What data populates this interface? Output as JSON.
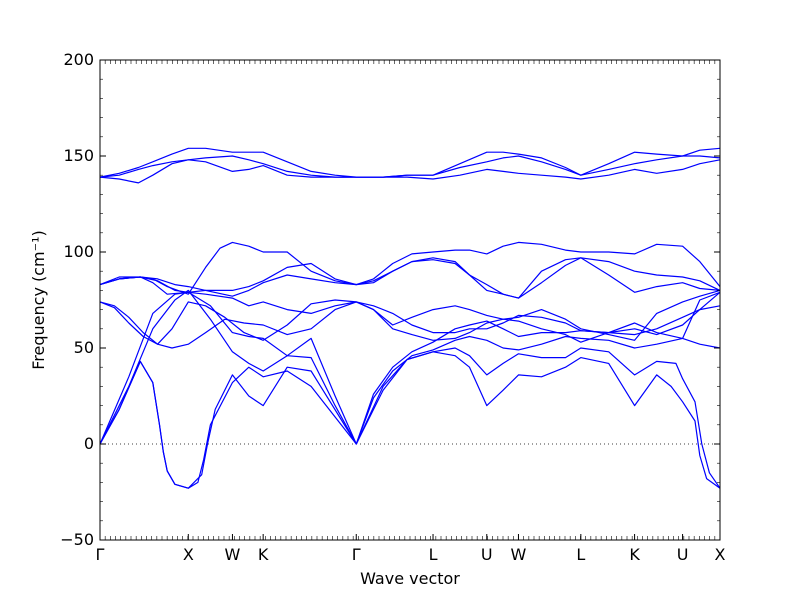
{
  "chart_data": {
    "type": "line",
    "xlabel": "Wave vector",
    "ylabel": "Frequency (cm⁻¹)",
    "ylim": [
      -50,
      200
    ],
    "yticks": [
      -50,
      0,
      50,
      100,
      150,
      200
    ],
    "xlim": [
      0,
      6.46
    ],
    "high_symmetry_points": [
      {
        "label": "Γ",
        "x": 0
      },
      {
        "label": "X",
        "x": 0.92
      },
      {
        "label": "W",
        "x": 1.38
      },
      {
        "label": "K",
        "x": 1.7
      },
      {
        "label": "Γ",
        "x": 2.67
      },
      {
        "label": "L",
        "x": 3.47
      },
      {
        "label": "U",
        "x": 4.03
      },
      {
        "label": "W",
        "x": 4.36
      },
      {
        "label": "L",
        "x": 5.01
      },
      {
        "label": "K",
        "x": 5.57
      },
      {
        "label": "U",
        "x": 6.07
      },
      {
        "label": "X",
        "x": 6.46
      }
    ],
    "zero_line": {
      "y": 0,
      "style": "dotted"
    },
    "line_color": "#0000ff",
    "series": [
      {
        "x": [
          0,
          0.2,
          0.42,
          0.55,
          0.62,
          0.66,
          0.7,
          0.78,
          0.92,
          1.06,
          1.12,
          1.2,
          1.38,
          1.55,
          1.7,
          1.95,
          2.2,
          2.67,
          2.95,
          3.2,
          3.47,
          3.7,
          3.85,
          4.03,
          4.2,
          4.36,
          4.6,
          4.85,
          5.01,
          5.3,
          5.57,
          5.8,
          5.95,
          6.07,
          6.2,
          6.25,
          6.32,
          6.46
        ],
        "y": [
          0,
          18,
          43,
          32,
          10,
          -4,
          -14,
          -21,
          -23,
          -16,
          0,
          18,
          36,
          25,
          20,
          40,
          38,
          0,
          30,
          44,
          48,
          46,
          40,
          20,
          28,
          36,
          35,
          40,
          45,
          42,
          20,
          36,
          30,
          22,
          12,
          -6,
          -18,
          -23
        ]
      },
      {
        "x": [
          0,
          0.2,
          0.42,
          0.55,
          0.62,
          0.66,
          0.7,
          0.78,
          0.92,
          1.02,
          1.08,
          1.15,
          1.38,
          1.55,
          1.7,
          1.95,
          2.2,
          2.67,
          2.95,
          3.2,
          3.47,
          3.7,
          3.85,
          4.03,
          4.2,
          4.36,
          4.6,
          4.85,
          5.01,
          5.3,
          5.57,
          5.8,
          6.0,
          6.07,
          6.2,
          6.27,
          6.35,
          6.46
        ],
        "y": [
          0,
          18,
          43,
          32,
          10,
          -4,
          -14,
          -21,
          -23,
          -20,
          -8,
          10,
          32,
          40,
          35,
          38,
          30,
          0,
          28,
          44,
          48,
          50,
          46,
          36,
          42,
          47,
          45,
          45,
          50,
          48,
          36,
          43,
          42,
          34,
          22,
          0,
          -15,
          -23
        ]
      },
      {
        "x": [
          0,
          0.3,
          0.55,
          0.78,
          0.92,
          1.15,
          1.38,
          1.55,
          1.7,
          1.95,
          2.2,
          2.45,
          2.67,
          2.85,
          3.05,
          3.25,
          3.47,
          3.7,
          3.85,
          4.03,
          4.2,
          4.36,
          4.6,
          4.85,
          5.01,
          5.3,
          5.57,
          5.8,
          6.07,
          6.25,
          6.46
        ],
        "y": [
          0,
          30,
          60,
          75,
          80,
          65,
          48,
          42,
          38,
          46,
          45,
          20,
          0,
          24,
          38,
          46,
          49,
          54,
          56,
          54,
          50,
          49,
          52,
          56,
          55,
          54,
          50,
          52,
          55,
          75,
          79
        ]
      },
      {
        "x": [
          0,
          0.3,
          0.55,
          0.78,
          0.92,
          1.15,
          1.38,
          1.55,
          1.7,
          1.95,
          2.2,
          2.45,
          2.67,
          2.85,
          3.05,
          3.25,
          3.47,
          3.7,
          3.85,
          4.03,
          4.2,
          4.36,
          4.6,
          4.85,
          5.01,
          5.3,
          5.57,
          5.8,
          6.07,
          6.25,
          6.46
        ],
        "y": [
          0,
          35,
          68,
          78,
          79,
          72,
          58,
          56,
          55,
          46,
          55,
          25,
          0,
          26,
          40,
          48,
          53,
          60,
          62,
          64,
          60,
          56,
          58,
          58,
          59,
          58,
          60,
          57,
          62,
          70,
          79
        ]
      },
      {
        "x": [
          0,
          0.15,
          0.3,
          0.45,
          0.6,
          0.75,
          0.92,
          1.1,
          1.3,
          1.5,
          1.7,
          1.95,
          2.2,
          2.45,
          2.67,
          2.85,
          3.05,
          3.25,
          3.47,
          3.7,
          3.85,
          4.03,
          4.2,
          4.36,
          4.6,
          4.85,
          5.01,
          5.3,
          5.57,
          5.8,
          6.07,
          6.25,
          6.46
        ],
        "y": [
          74,
          71,
          63,
          56,
          52,
          50,
          52,
          58,
          65,
          63,
          62,
          57,
          60,
          70,
          74,
          70,
          60,
          57,
          54,
          55,
          58,
          63,
          65,
          64,
          60,
          57,
          53,
          58,
          63,
          58,
          55,
          52,
          50
        ]
      },
      {
        "x": [
          0,
          0.15,
          0.3,
          0.45,
          0.6,
          0.75,
          0.92,
          1.1,
          1.3,
          1.5,
          1.7,
          1.95,
          2.2,
          2.45,
          2.67,
          2.85,
          3.05,
          3.25,
          3.47,
          3.7,
          3.85,
          4.03,
          4.2,
          4.36,
          4.6,
          4.85,
          5.01,
          5.3,
          5.57,
          5.8,
          6.07,
          6.25,
          6.46
        ],
        "y": [
          74,
          72,
          66,
          58,
          52,
          60,
          74,
          72,
          66,
          58,
          54,
          62,
          73,
          75,
          74,
          72,
          68,
          62,
          58,
          58,
          60,
          60,
          63,
          67,
          66,
          63,
          59,
          58,
          57,
          60,
          66,
          70,
          72
        ]
      },
      {
        "x": [
          0,
          0.2,
          0.42,
          0.6,
          0.78,
          0.92,
          1.1,
          1.38,
          1.55,
          1.7,
          1.95,
          2.2,
          2.45,
          2.67,
          2.85,
          3.05,
          3.25,
          3.47,
          3.7,
          3.85,
          4.03,
          4.2,
          4.36,
          4.6,
          4.85,
          5.01,
          5.3,
          5.57,
          5.8,
          6.07,
          6.25,
          6.46
        ],
        "y": [
          83,
          86,
          87,
          85,
          80,
          79,
          78,
          76,
          72,
          74,
          70,
          68,
          72,
          74,
          70,
          62,
          66,
          70,
          72,
          70,
          67,
          65,
          66,
          70,
          65,
          60,
          57,
          54,
          68,
          74,
          77,
          80
        ]
      },
      {
        "x": [
          0,
          0.2,
          0.42,
          0.6,
          0.78,
          0.92,
          1.1,
          1.38,
          1.55,
          1.7,
          1.95,
          2.2,
          2.45,
          2.67,
          2.85,
          3.05,
          3.25,
          3.47,
          3.7,
          3.85,
          4.03,
          4.2,
          4.36,
          4.6,
          4.85,
          5.01,
          5.3,
          5.57,
          5.8,
          6.07,
          6.25,
          6.46
        ],
        "y": [
          83,
          87,
          87,
          86,
          83,
          82,
          80,
          77,
          80,
          84,
          88,
          86,
          84,
          83,
          84,
          90,
          95,
          96,
          94,
          88,
          80,
          78,
          76,
          84,
          93,
          97,
          88,
          79,
          82,
          84,
          81,
          80
        ]
      },
      {
        "x": [
          0,
          0.2,
          0.42,
          0.55,
          0.7,
          0.92,
          1.1,
          1.25,
          1.38,
          1.55,
          1.7,
          1.95,
          2.2,
          2.45,
          2.67,
          2.85,
          3.05,
          3.25,
          3.47,
          3.7,
          3.85,
          4.03,
          4.2,
          4.36,
          4.6,
          4.85,
          5.01,
          5.3,
          5.57,
          5.8,
          6.07,
          6.25,
          6.46
        ],
        "y": [
          83,
          86,
          87,
          86,
          82,
          78,
          92,
          102,
          105,
          103,
          100,
          100,
          90,
          85,
          83,
          85,
          90,
          95,
          97,
          95,
          88,
          83,
          78,
          76,
          90,
          96,
          97,
          95,
          90,
          88,
          87,
          85,
          80
        ]
      },
      {
        "x": [
          0,
          0.2,
          0.42,
          0.55,
          0.7,
          0.92,
          1.1,
          1.25,
          1.38,
          1.55,
          1.7,
          1.95,
          2.2,
          2.45,
          2.67,
          2.85,
          3.05,
          3.25,
          3.47,
          3.7,
          3.85,
          4.03,
          4.2,
          4.36,
          4.6,
          4.85,
          5.01,
          5.3,
          5.57,
          5.8,
          6.07,
          6.25,
          6.46
        ],
        "y": [
          83,
          86,
          87,
          84,
          78,
          79,
          80,
          80,
          80,
          82,
          85,
          92,
          94,
          86,
          83,
          86,
          94,
          99,
          100,
          101,
          101,
          99,
          103,
          105,
          104,
          101,
          100,
          100,
          99,
          104,
          103,
          95,
          82
        ]
      },
      {
        "x": [
          0,
          0.2,
          0.4,
          0.55,
          0.75,
          0.92,
          1.1,
          1.38,
          1.55,
          1.7,
          1.95,
          2.2,
          2.45,
          2.67,
          2.95,
          3.2,
          3.47,
          3.75,
          4.03,
          4.2,
          4.36,
          4.6,
          4.85,
          5.01,
          5.3,
          5.57,
          5.8,
          6.07,
          6.25,
          6.46
        ],
        "y": [
          139,
          138,
          136,
          140,
          146,
          148,
          147,
          142,
          143,
          145,
          140,
          139,
          139,
          139,
          139,
          139,
          138,
          140,
          143,
          142,
          141,
          140,
          139,
          138,
          140,
          143,
          141,
          143,
          146,
          148
        ]
      },
      {
        "x": [
          0,
          0.2,
          0.4,
          0.55,
          0.75,
          0.92,
          1.1,
          1.38,
          1.55,
          1.7,
          1.95,
          2.2,
          2.45,
          2.67,
          2.95,
          3.2,
          3.47,
          3.75,
          4.03,
          4.2,
          4.36,
          4.6,
          4.85,
          5.01,
          5.3,
          5.57,
          5.8,
          6.07,
          6.25,
          6.46
        ],
        "y": [
          139,
          140,
          143,
          145,
          147,
          148,
          149,
          150,
          148,
          146,
          142,
          140,
          139,
          139,
          139,
          140,
          140,
          144,
          147,
          149,
          150,
          147,
          143,
          140,
          143,
          146,
          148,
          150,
          150,
          149
        ]
      },
      {
        "x": [
          0,
          0.2,
          0.4,
          0.55,
          0.75,
          0.92,
          1.1,
          1.38,
          1.55,
          1.7,
          1.95,
          2.2,
          2.45,
          2.67,
          2.95,
          3.2,
          3.47,
          3.75,
          4.03,
          4.2,
          4.36,
          4.6,
          4.85,
          5.01,
          5.3,
          5.57,
          5.8,
          6.07,
          6.25,
          6.46
        ],
        "y": [
          139,
          141,
          144,
          147,
          151,
          154,
          154,
          152,
          152,
          152,
          147,
          142,
          140,
          139,
          139,
          140,
          140,
          146,
          152,
          152,
          151,
          149,
          144,
          140,
          146,
          152,
          151,
          150,
          153,
          154
        ]
      }
    ]
  }
}
